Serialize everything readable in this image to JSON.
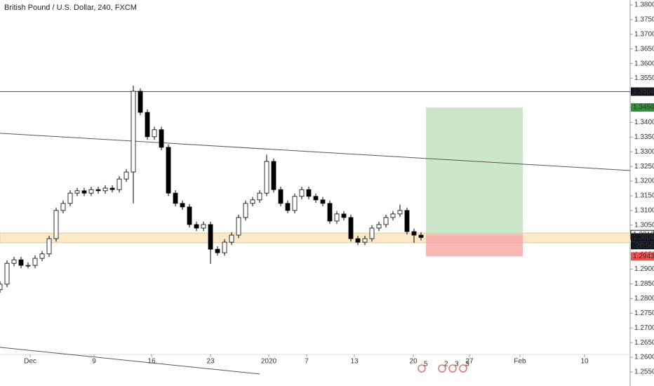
{
  "chart_data": {
    "type": "candlestick",
    "title": "British Pound / U.S. Dollar, 240, FXCM",
    "x": [
      0,
      1,
      2,
      3,
      4,
      5,
      6,
      7,
      8,
      9,
      10,
      11,
      12,
      13,
      14,
      15,
      16,
      17,
      18,
      19,
      20,
      21,
      22,
      23,
      24,
      25,
      26,
      27,
      28,
      29,
      30,
      31,
      32,
      33,
      34,
      35,
      36,
      37,
      38,
      39,
      40,
      41,
      42,
      43,
      44,
      45,
      46,
      47,
      48,
      49,
      50,
      51,
      52,
      53,
      54,
      55,
      56,
      57,
      58,
      59,
      60
    ],
    "open": [
      1.283,
      1.2849,
      1.292,
      1.2932,
      1.2913,
      1.2913,
      1.2937,
      1.2952,
      1.3004,
      1.31,
      1.3124,
      1.3159,
      1.3167,
      1.3159,
      1.3171,
      1.3167,
      1.3176,
      1.3171,
      1.3207,
      1.3231,
      1.3506,
      1.3434,
      1.3351,
      1.3375,
      1.3315,
      1.3159,
      1.3124,
      1.3112,
      1.3052,
      1.304,
      1.3052,
      1.2968,
      1.2956,
      1.2992,
      1.3016,
      1.3076,
      1.3124,
      1.3136,
      1.3159,
      1.3267,
      1.3171,
      1.3124,
      1.31,
      1.3148,
      1.3171,
      1.3148,
      1.3136,
      1.3124,
      1.3064,
      1.3088,
      1.3076,
      1.3004,
      1.2992,
      1.3004,
      1.304,
      1.3052,
      1.3076,
      1.3088,
      1.31,
      1.3028,
      1.3016
    ],
    "high": [
      1.2859,
      1.293,
      1.2942,
      1.2942,
      1.2923,
      1.2947,
      1.2962,
      1.3014,
      1.311,
      1.3134,
      1.3169,
      1.3177,
      1.3177,
      1.3181,
      1.3181,
      1.3186,
      1.3186,
      1.3217,
      1.3241,
      1.3525,
      1.3516,
      1.3444,
      1.3385,
      1.3385,
      1.3325,
      1.3169,
      1.3134,
      1.3122,
      1.3062,
      1.3062,
      1.3062,
      1.2978,
      1.3002,
      1.3026,
      1.3086,
      1.3134,
      1.3146,
      1.3169,
      1.329,
      1.3277,
      1.3181,
      1.3134,
      1.3158,
      1.3181,
      1.3181,
      1.3158,
      1.3146,
      1.3134,
      1.3098,
      1.3098,
      1.3086,
      1.3014,
      1.3014,
      1.305,
      1.3062,
      1.3086,
      1.3098,
      1.312,
      1.311,
      1.3038,
      1.3026
    ],
    "low": [
      1.282,
      1.2839,
      1.291,
      1.2903,
      1.2903,
      1.2903,
      1.2927,
      1.2942,
      1.2994,
      1.309,
      1.3114,
      1.3149,
      1.3149,
      1.3149,
      1.3157,
      1.3157,
      1.3161,
      1.3161,
      1.3197,
      1.3124,
      1.3424,
      1.3341,
      1.3341,
      1.3305,
      1.3149,
      1.3114,
      1.3102,
      1.3042,
      1.303,
      1.303,
      1.2918,
      1.2946,
      1.2946,
      1.2982,
      1.3006,
      1.3066,
      1.3114,
      1.3126,
      1.3149,
      1.3161,
      1.3114,
      1.309,
      1.309,
      1.3138,
      1.3138,
      1.3126,
      1.3114,
      1.3054,
      1.3054,
      1.3066,
      1.2994,
      1.2982,
      1.2982,
      1.2994,
      1.303,
      1.3042,
      1.3066,
      1.3078,
      1.3018,
      1.299,
      1.2998
    ],
    "close": [
      1.2849,
      1.292,
      1.2932,
      1.2913,
      1.2913,
      1.2937,
      1.2952,
      1.3004,
      1.31,
      1.3124,
      1.3159,
      1.3167,
      1.3159,
      1.3171,
      1.3167,
      1.3176,
      1.3171,
      1.3207,
      1.3231,
      1.3506,
      1.3434,
      1.3351,
      1.3375,
      1.3315,
      1.3159,
      1.3124,
      1.3112,
      1.3052,
      1.304,
      1.3052,
      1.2968,
      1.2956,
      1.2992,
      1.3016,
      1.3076,
      1.3124,
      1.3136,
      1.3159,
      1.3267,
      1.3171,
      1.3124,
      1.31,
      1.3148,
      1.3171,
      1.3148,
      1.3136,
      1.3124,
      1.3064,
      1.3088,
      1.3076,
      1.3004,
      1.2992,
      1.3004,
      1.304,
      1.3052,
      1.3076,
      1.3088,
      1.31,
      1.3028,
      1.3016,
      1.3008
    ],
    "up_color": "#ffffff",
    "down_color": "#000000",
    "wick_color": "#000000",
    "xlim": [
      0,
      89.8
    ],
    "ylim": [
      1.25022,
      1.38167
    ],
    "xticks": [
      {
        "value": 4.3,
        "label": "Dec"
      },
      {
        "value": 13.4,
        "label": "9"
      },
      {
        "value": 21.6,
        "label": "16"
      },
      {
        "value": 30.0,
        "label": "23"
      },
      {
        "value": 38.3,
        "label": "2020"
      },
      {
        "value": 43.7,
        "label": "7"
      },
      {
        "value": 50.5,
        "label": "13"
      },
      {
        "value": 58.9,
        "label": "20"
      },
      {
        "value": 66.9,
        "label": "27"
      },
      {
        "value": 74.1,
        "label": "Feb"
      },
      {
        "value": 83.3,
        "label": "10"
      }
    ],
    "yticks": [
      {
        "value": 1.255,
        "label": "1.25500"
      },
      {
        "value": 1.26,
        "label": "1.26000"
      },
      {
        "value": 1.265,
        "label": "1.26500"
      },
      {
        "value": 1.27,
        "label": "1.27000"
      },
      {
        "value": 1.275,
        "label": "1.27500"
      },
      {
        "value": 1.28,
        "label": "1.28000"
      },
      {
        "value": 1.285,
        "label": "1.28500"
      },
      {
        "value": 1.29,
        "label": "1.29000"
      },
      {
        "value": 1.295,
        "label": "1.29500"
      },
      {
        "value": 1.3,
        "label": "1.30000"
      },
      {
        "value": 1.305,
        "label": "1.30500"
      },
      {
        "value": 1.31,
        "label": "1.31000"
      },
      {
        "value": 1.315,
        "label": "1.31500"
      },
      {
        "value": 1.32,
        "label": "1.32000"
      },
      {
        "value": 1.325,
        "label": "1.32500"
      },
      {
        "value": 1.33,
        "label": "1.33000"
      },
      {
        "value": 1.335,
        "label": "1.33500"
      },
      {
        "value": 1.34,
        "label": "1.34000"
      },
      {
        "value": 1.345,
        "label": "1.34500"
      },
      {
        "value": 1.35,
        "label": "1.35000"
      },
      {
        "value": 1.355,
        "label": "1.35500"
      },
      {
        "value": 1.36,
        "label": "1.36000"
      },
      {
        "value": 1.365,
        "label": "1.36500"
      },
      {
        "value": 1.37,
        "label": "1.37000"
      },
      {
        "value": 1.375,
        "label": "1.37500"
      },
      {
        "value": 1.38,
        "label": "1.38000"
      }
    ],
    "lines": [
      {
        "x": [
          0,
          89.8
        ],
        "y": [
          1.35047,
          1.35047
        ],
        "color": "#555555"
      },
      {
        "x": [
          0,
          89.8
        ],
        "y": [
          1.3363,
          1.3236
        ],
        "color": "#555555"
      },
      {
        "x": [
          0,
          37
        ],
        "y": [
          1.2634,
          1.2543
        ],
        "color": "#555555"
      }
    ],
    "zone": {
      "x": [
        0,
        89.8
      ],
      "y": [
        1.299,
        1.3023
      ],
      "color": "#fbe9c8"
    },
    "position": {
      "x": [
        60.7,
        74.5
      ],
      "target": 1.34508,
      "entry": 1.3018,
      "stop": 1.29436,
      "profit_color": "#b9dcb7",
      "loss_color": "#f7a9a8"
    },
    "price_labels": [
      {
        "value": 1.35047,
        "label": "1.35047",
        "color": "#131722"
      },
      {
        "value": 1.34508,
        "label": "1.34508",
        "color": "#388e3c"
      },
      {
        "value": 1.3018,
        "label": "1.30180",
        "color": "#ffffff"
      },
      {
        "value": 1.30082,
        "label": "1.30082",
        "color": "#131722"
      },
      {
        "value": 1.29436,
        "label": "1.29436",
        "color": "#ef5350"
      }
    ],
    "countdown": "20:56",
    "events": [
      {
        "x": 60.1,
        "label": "5"
      },
      {
        "x": 63.0,
        "label": "2"
      },
      {
        "x": 64.5,
        "label": "3"
      },
      {
        "x": 66.0,
        "label": "3"
      }
    ]
  }
}
